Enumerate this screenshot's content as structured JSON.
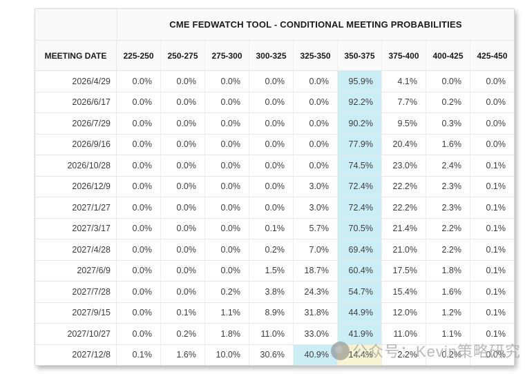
{
  "chart_data": {
    "type": "table",
    "title": "CME FEDWATCH TOOL - CONDITIONAL MEETING PROBABILITIES",
    "columns": [
      "MEETING DATE",
      "225-250",
      "250-275",
      "275-300",
      "300-325",
      "325-350",
      "350-375",
      "375-400",
      "400-425",
      "425-450"
    ],
    "rows": [
      {
        "date": "2026/4/29",
        "values": [
          "0.0%",
          "0.0%",
          "0.0%",
          "0.0%",
          "0.0%",
          "95.9%",
          "4.1%",
          "0.0%",
          "0.0%"
        ],
        "highlights": {
          "5": "blue"
        }
      },
      {
        "date": "2026/6/17",
        "values": [
          "0.0%",
          "0.0%",
          "0.0%",
          "0.0%",
          "0.0%",
          "92.2%",
          "7.7%",
          "0.2%",
          "0.0%"
        ],
        "highlights": {
          "5": "blue"
        }
      },
      {
        "date": "2026/7/29",
        "values": [
          "0.0%",
          "0.0%",
          "0.0%",
          "0.0%",
          "0.0%",
          "90.2%",
          "9.5%",
          "0.3%",
          "0.0%"
        ],
        "highlights": {
          "5": "blue"
        }
      },
      {
        "date": "2026/9/16",
        "values": [
          "0.0%",
          "0.0%",
          "0.0%",
          "0.0%",
          "0.0%",
          "77.9%",
          "20.4%",
          "1.6%",
          "0.0%"
        ],
        "highlights": {
          "5": "blue"
        }
      },
      {
        "date": "2026/10/28",
        "values": [
          "0.0%",
          "0.0%",
          "0.0%",
          "0.0%",
          "0.0%",
          "74.5%",
          "23.0%",
          "2.4%",
          "0.1%"
        ],
        "highlights": {
          "5": "blue"
        }
      },
      {
        "date": "2026/12/9",
        "values": [
          "0.0%",
          "0.0%",
          "0.0%",
          "0.0%",
          "3.0%",
          "72.4%",
          "22.2%",
          "2.3%",
          "0.1%"
        ],
        "highlights": {
          "5": "blue"
        }
      },
      {
        "date": "2027/1/27",
        "values": [
          "0.0%",
          "0.0%",
          "0.0%",
          "0.0%",
          "3.0%",
          "72.4%",
          "22.2%",
          "2.3%",
          "0.1%"
        ],
        "highlights": {
          "5": "blue"
        }
      },
      {
        "date": "2027/3/17",
        "values": [
          "0.0%",
          "0.0%",
          "0.0%",
          "0.1%",
          "5.7%",
          "70.5%",
          "21.4%",
          "2.2%",
          "0.1%"
        ],
        "highlights": {
          "5": "blue"
        }
      },
      {
        "date": "2027/4/28",
        "values": [
          "0.0%",
          "0.0%",
          "0.0%",
          "0.2%",
          "7.0%",
          "69.4%",
          "21.0%",
          "2.2%",
          "0.1%"
        ],
        "highlights": {
          "5": "blue"
        }
      },
      {
        "date": "2027/6/9",
        "values": [
          "0.0%",
          "0.0%",
          "0.0%",
          "1.5%",
          "18.7%",
          "60.4%",
          "17.5%",
          "1.8%",
          "0.1%"
        ],
        "highlights": {
          "5": "blue"
        }
      },
      {
        "date": "2027/7/28",
        "values": [
          "0.0%",
          "0.0%",
          "0.2%",
          "3.8%",
          "24.3%",
          "54.7%",
          "15.4%",
          "1.6%",
          "0.1%"
        ],
        "highlights": {
          "5": "blue"
        }
      },
      {
        "date": "2027/9/15",
        "values": [
          "0.0%",
          "0.1%",
          "1.1%",
          "8.9%",
          "31.8%",
          "44.9%",
          "12.0%",
          "1.2%",
          "0.1%"
        ],
        "highlights": {
          "5": "blue"
        }
      },
      {
        "date": "2027/10/27",
        "values": [
          "0.0%",
          "0.2%",
          "1.8%",
          "11.0%",
          "33.0%",
          "41.9%",
          "11.0%",
          "1.1%",
          "0.1%"
        ],
        "highlights": {
          "5": "blue"
        }
      },
      {
        "date": "2027/12/8",
        "values": [
          "0.1%",
          "1.6%",
          "10.0%",
          "30.6%",
          "40.9%",
          "14.4%",
          "2.2%",
          "0.2%",
          "0.0%"
        ],
        "highlights": {
          "4": "blue",
          "5": "yellow"
        }
      }
    ],
    "layout": {
      "grid": true,
      "highlighted_column": "350-375",
      "highlight_colors": {
        "blue": "#cbedf6",
        "yellow": "#f7f4d1"
      }
    }
  },
  "watermark": {
    "text": "公众号：Kevin策略研究"
  }
}
